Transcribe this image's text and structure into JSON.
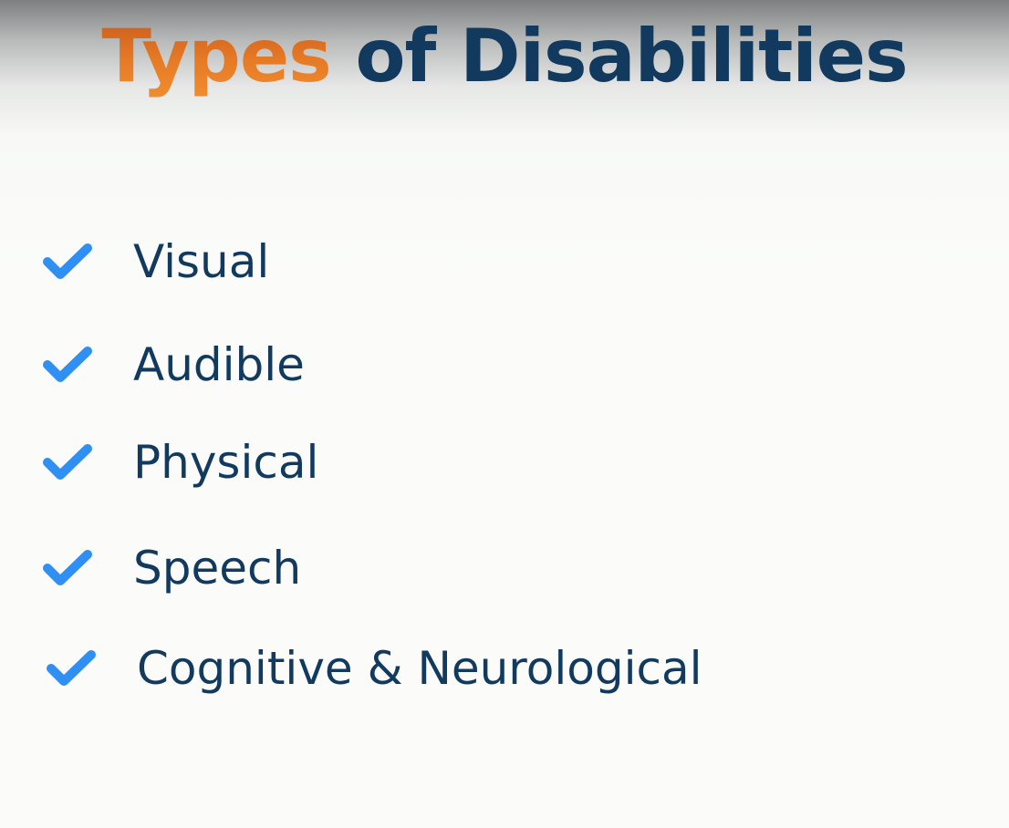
{
  "slide": {
    "title_accent": "Types",
    "title_main": " of Disabilities",
    "items": [
      {
        "label": "Visual",
        "icon": "check-icon"
      },
      {
        "label": "Audible",
        "icon": "check-icon"
      },
      {
        "label": "Physical",
        "icon": "check-icon"
      },
      {
        "label": "Speech",
        "icon": "check-icon"
      },
      {
        "label": "Cognitive & Neurological",
        "icon": "check-icon"
      }
    ]
  },
  "colors": {
    "title_accent": "#e07525",
    "title_main": "#123a5e",
    "check": "#2f8ff2",
    "text": "#123a5e"
  }
}
